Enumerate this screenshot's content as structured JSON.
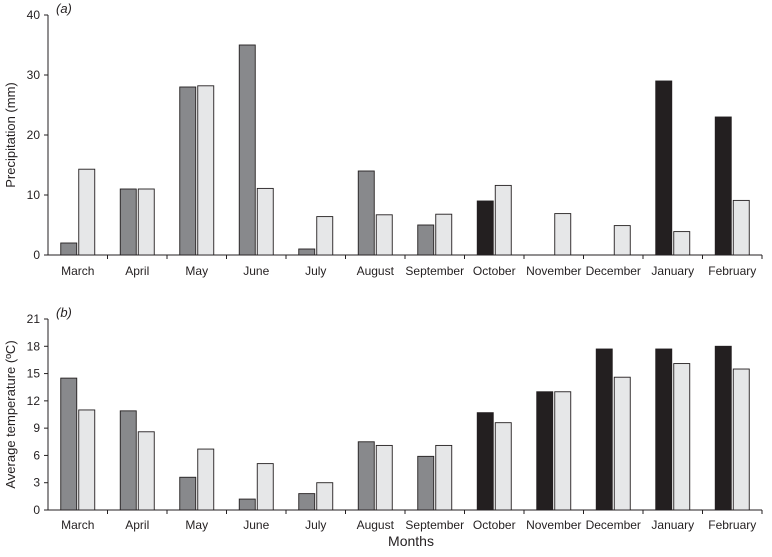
{
  "colors": {
    "dark": "#231f20",
    "medium": "#88898c",
    "light": "#e6e7e8",
    "stroke": "#231f20"
  },
  "x_axis_label": "Months",
  "chart_data": [
    {
      "type": "bar",
      "panel_label": "(a)",
      "title": "",
      "xlabel": "",
      "ylabel": "Precipitation (mm)",
      "ylim": [
        0,
        40
      ],
      "yticks": [
        0,
        10,
        20,
        30,
        40
      ],
      "grid": false,
      "categories": [
        "March",
        "April",
        "May",
        "June",
        "July",
        "August",
        "September",
        "October",
        "November",
        "December",
        "January",
        "February"
      ],
      "series": [
        {
          "values": [
            2,
            11,
            28,
            35,
            1,
            14,
            5,
            9,
            null,
            null,
            29,
            23
          ],
          "fill_colors": [
            "medium",
            "medium",
            "medium",
            "medium",
            "medium",
            "medium",
            "medium",
            "dark",
            "dark",
            "dark",
            "dark",
            "dark"
          ]
        },
        {
          "values": [
            14.3,
            11,
            28.2,
            11.1,
            6.4,
            6.7,
            6.8,
            11.6,
            6.9,
            4.9,
            3.9,
            9.1
          ],
          "fill_colors": [
            "light",
            "light",
            "light",
            "light",
            "light",
            "light",
            "light",
            "light",
            "light",
            "light",
            "light",
            "light"
          ]
        }
      ]
    },
    {
      "type": "bar",
      "panel_label": "(b)",
      "title": "",
      "xlabel": "Months",
      "ylabel": "Average temperature (ºC)",
      "ylim": [
        0,
        21
      ],
      "yticks": [
        0,
        3,
        6,
        9,
        12,
        15,
        18,
        21
      ],
      "grid": false,
      "categories": [
        "March",
        "April",
        "May",
        "June",
        "July",
        "August",
        "September",
        "October",
        "November",
        "December",
        "January",
        "February"
      ],
      "series": [
        {
          "values": [
            14.5,
            10.9,
            3.6,
            1.2,
            1.8,
            7.5,
            5.9,
            10.7,
            13,
            17.7,
            17.7,
            18
          ],
          "fill_colors": [
            "medium",
            "medium",
            "medium",
            "medium",
            "medium",
            "medium",
            "medium",
            "dark",
            "dark",
            "dark",
            "dark",
            "dark"
          ]
        },
        {
          "values": [
            11,
            8.6,
            6.7,
            5.1,
            3,
            7.1,
            7.1,
            9.6,
            13,
            14.6,
            16.1,
            15.5
          ],
          "fill_colors": [
            "light",
            "light",
            "light",
            "light",
            "light",
            "light",
            "light",
            "light",
            "light",
            "light",
            "light",
            "light"
          ]
        }
      ]
    }
  ]
}
